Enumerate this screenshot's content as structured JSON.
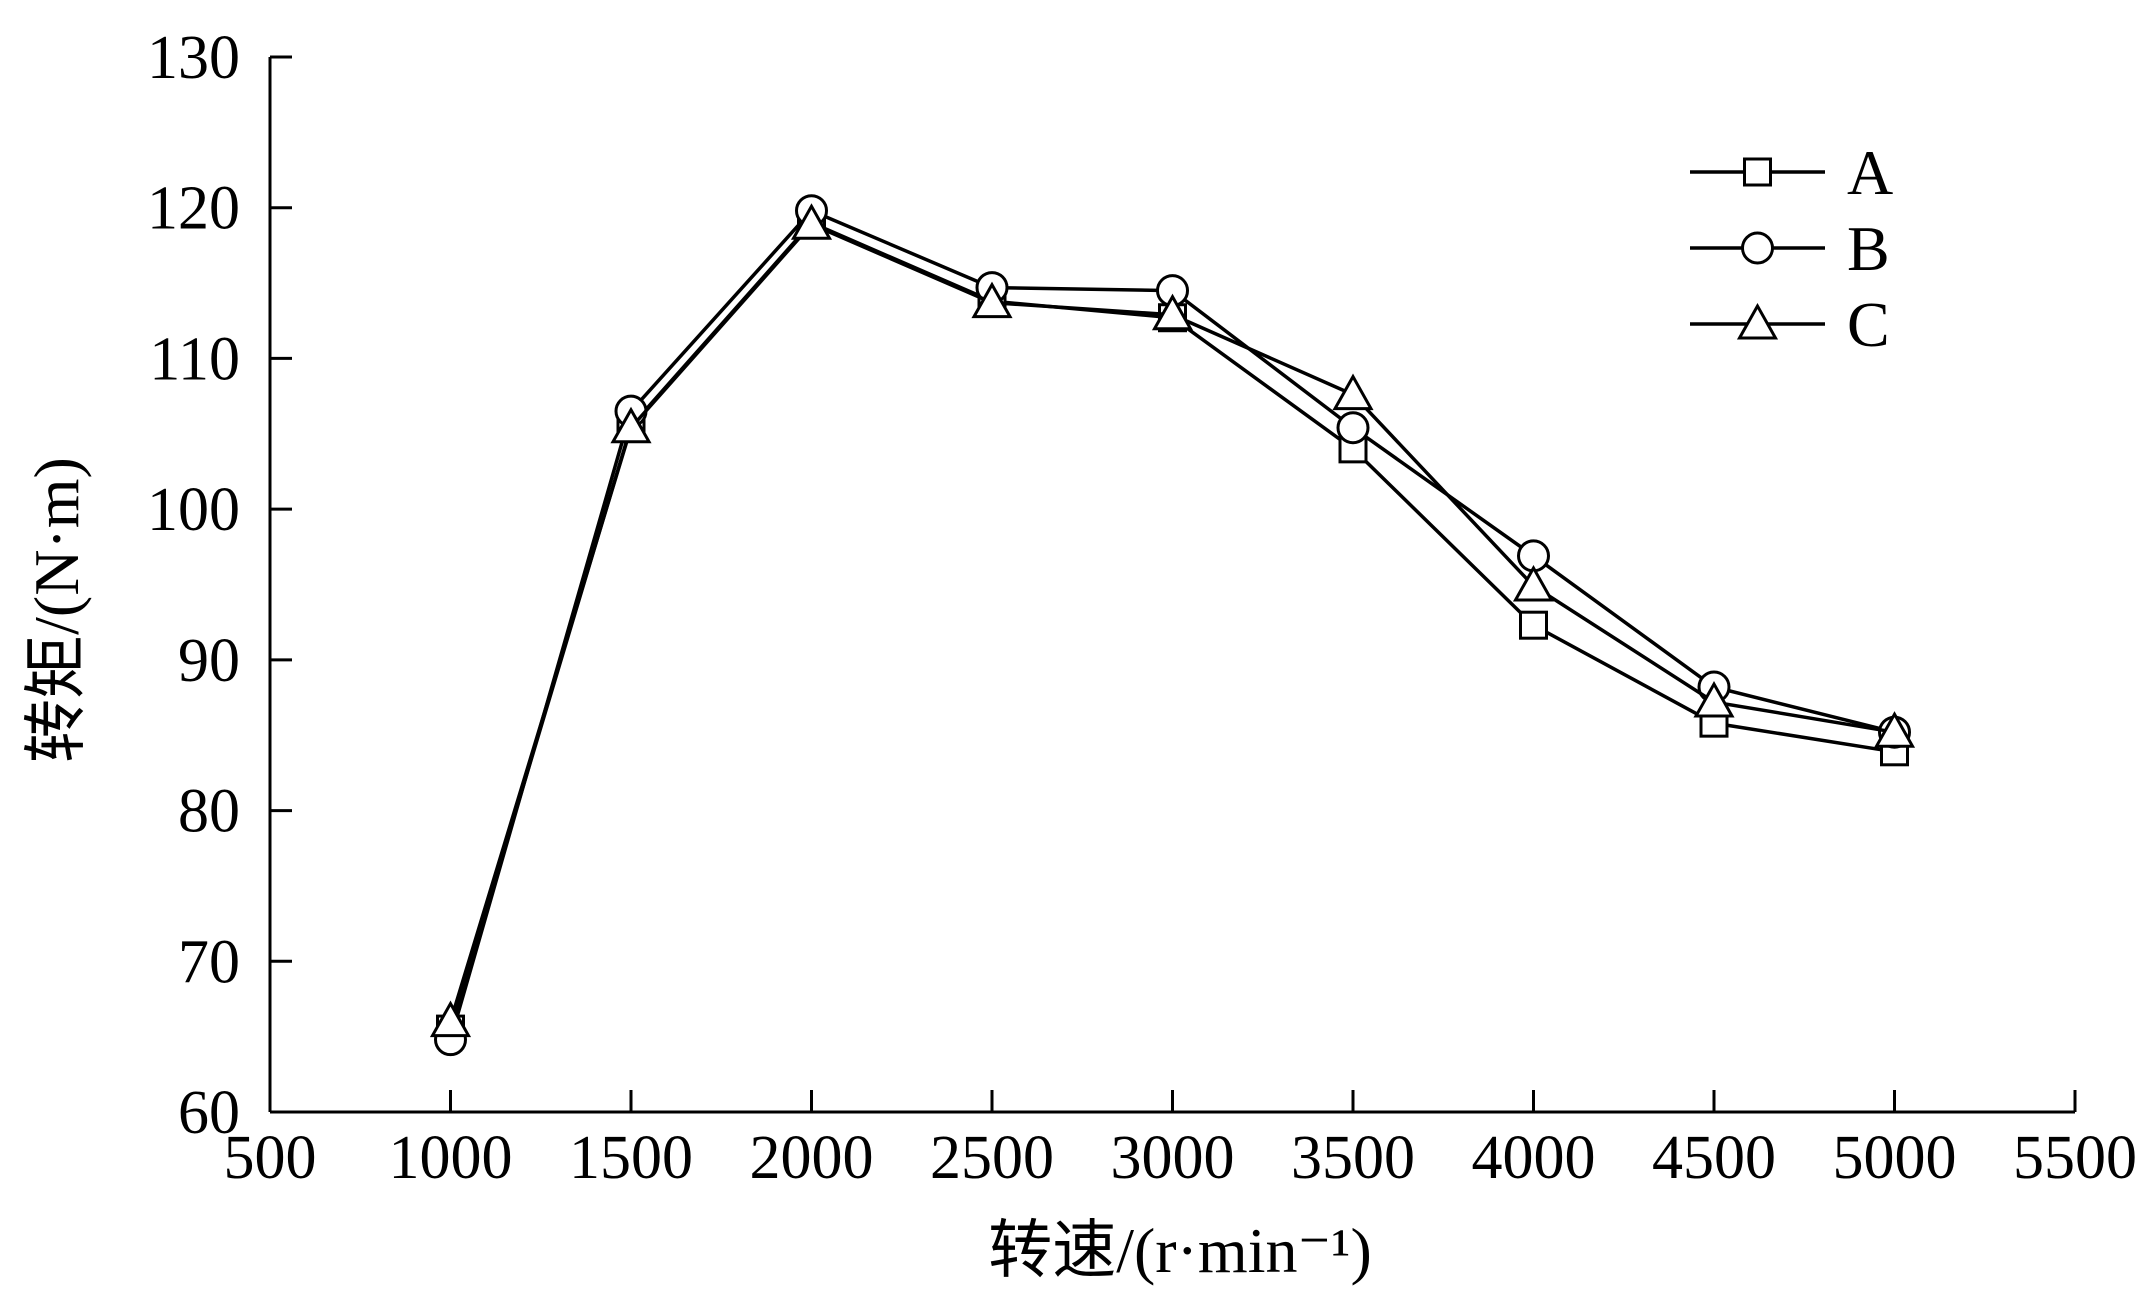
{
  "chart_data": {
    "type": "line",
    "xlabel": "转速/(r·min⁻¹)",
    "ylabel": "转矩/(N·m)",
    "xlim": [
      500,
      5500
    ],
    "ylim": [
      60,
      130
    ],
    "x_ticks": [
      500,
      1000,
      1500,
      2000,
      2500,
      3000,
      3500,
      4000,
      4500,
      5000,
      5500
    ],
    "y_ticks": [
      60,
      70,
      80,
      90,
      100,
      110,
      120,
      130
    ],
    "x": [
      1000,
      1500,
      2000,
      2500,
      3000,
      3500,
      4000,
      4500,
      5000
    ],
    "series": [
      {
        "name": "A",
        "marker": "square",
        "values": [
          65.5,
          105.5,
          119.0,
          113.8,
          112.7,
          104.0,
          92.3,
          85.8,
          83.9
        ]
      },
      {
        "name": "B",
        "marker": "circle",
        "values": [
          64.8,
          106.5,
          119.8,
          114.7,
          114.5,
          105.4,
          96.9,
          88.2,
          85.2
        ]
      },
      {
        "name": "C",
        "marker": "triangle",
        "values": [
          66.0,
          105.4,
          118.9,
          113.7,
          112.9,
          107.6,
          94.9,
          87.2,
          85.2
        ]
      }
    ],
    "grid": false,
    "legend_position": "top-right",
    "colors": {
      "line": "#000000",
      "marker_fill": "#ffffff",
      "background": "#ffffff"
    }
  }
}
